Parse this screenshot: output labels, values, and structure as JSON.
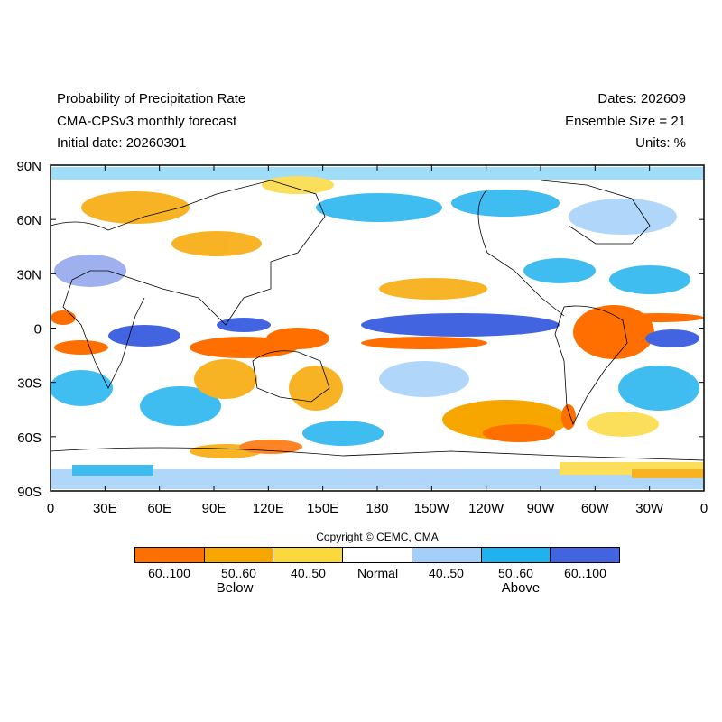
{
  "header": {
    "title": "Probability of Precipitation Rate",
    "model": "CMA-CPSv3 monthly forecast",
    "initial_date": "Initial date: 20260301",
    "dates": "Dates: 202609",
    "ensemble": "Ensemble Size = 21",
    "units": "Units: %"
  },
  "axes": {
    "y_ticks": [
      "90N",
      "60N",
      "30N",
      "0",
      "30S",
      "60S",
      "90S"
    ],
    "x_ticks": [
      "0",
      "30E",
      "60E",
      "90E",
      "120E",
      "150E",
      "180",
      "150W",
      "120W",
      "90W",
      "60W",
      "30W",
      "0"
    ]
  },
  "copyright": "Copyright © CEMC, CMA",
  "legend": {
    "bins": [
      {
        "label": "60..100",
        "color": "#ff6f00"
      },
      {
        "label": "50..60",
        "color": "#f7a600"
      },
      {
        "label": "40..50",
        "color": "#fbd93d"
      },
      {
        "label": "Normal",
        "color": "#ffffff"
      },
      {
        "label": "40..50",
        "color": "#a3cff8"
      },
      {
        "label": "50..60",
        "color": "#1fb2ee"
      },
      {
        "label": "60..100",
        "color": "#4264e0"
      }
    ],
    "below_label": "Below",
    "above_label": "Above"
  }
}
